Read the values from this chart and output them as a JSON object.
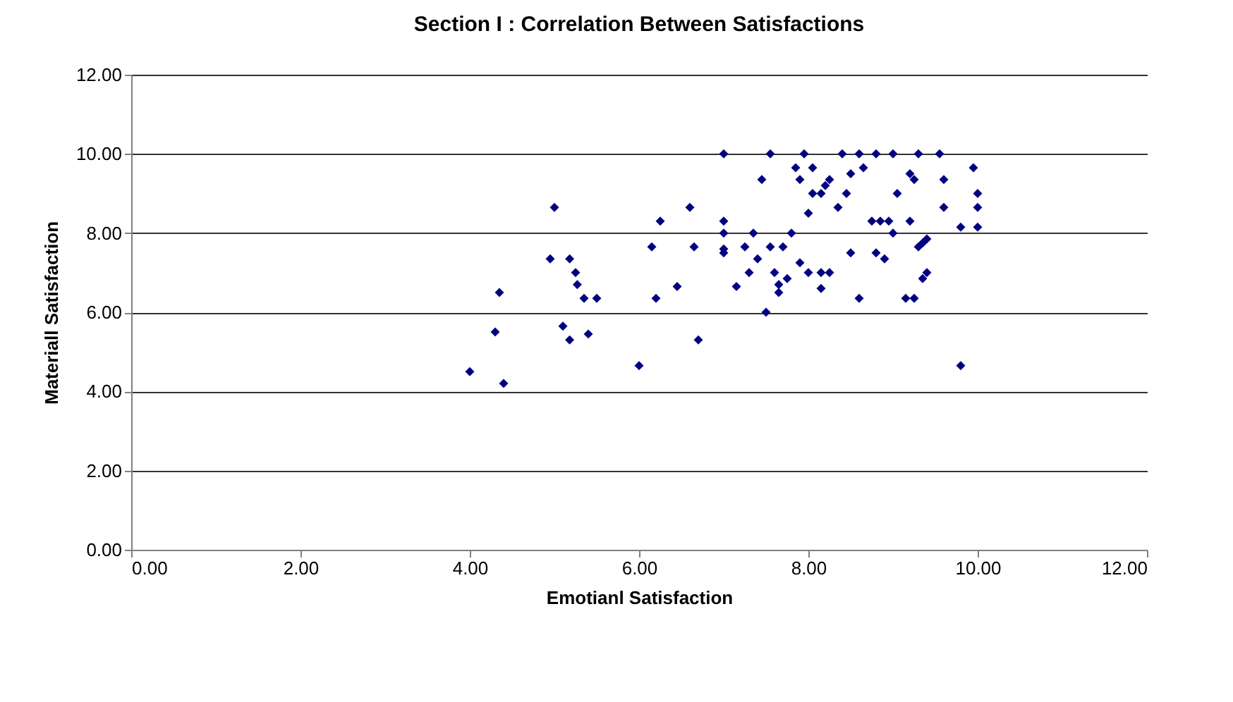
{
  "chart_data": {
    "type": "scatter",
    "title": "Section I : Correlation Between Satisfactions",
    "xlabel": "Emotianl Satisfaction",
    "ylabel": "Materiall Satisfaction",
    "x": [
      4.0,
      4.3,
      4.35,
      4.4,
      4.95,
      5.0,
      5.1,
      5.18,
      5.18,
      5.25,
      5.27,
      5.35,
      5.4,
      5.5,
      6.0,
      6.15,
      6.2,
      6.25,
      6.45,
      6.6,
      6.65,
      6.7,
      7.0,
      7.0,
      7.0,
      7.0,
      7.0,
      7.15,
      7.25,
      7.3,
      7.35,
      7.4,
      7.45,
      7.5,
      7.55,
      7.55,
      7.6,
      7.65,
      7.65,
      7.7,
      7.75,
      7.8,
      7.85,
      7.9,
      7.9,
      7.95,
      8.0,
      8.0,
      8.05,
      8.05,
      8.15,
      8.15,
      8.15,
      8.2,
      8.25,
      8.25,
      8.35,
      8.4,
      8.45,
      8.5,
      8.5,
      8.6,
      8.6,
      8.65,
      8.75,
      8.8,
      8.8,
      8.85,
      8.9,
      8.95,
      9.0,
      9.0,
      9.05,
      9.15,
      9.2,
      9.2,
      9.25,
      9.25,
      9.3,
      9.3,
      9.35,
      9.35,
      9.4,
      9.4,
      9.55,
      9.6,
      9.6,
      9.8,
      9.8,
      9.95,
      10.0,
      10.0,
      10.0
    ],
    "series": [
      {
        "color": "#000080",
        "values": [
          4.5,
          5.5,
          6.5,
          4.2,
          7.35,
          8.65,
          5.65,
          7.35,
          5.3,
          7.0,
          6.7,
          6.35,
          5.45,
          6.35,
          4.65,
          7.65,
          6.35,
          8.3,
          6.65,
          8.65,
          7.65,
          5.3,
          10.0,
          8.3,
          8.0,
          7.6,
          7.5,
          6.65,
          7.65,
          7.0,
          8.0,
          7.35,
          9.35,
          6.0,
          10.0,
          7.65,
          7.0,
          6.5,
          6.7,
          7.65,
          6.85,
          8.0,
          9.65,
          9.35,
          7.25,
          10.0,
          7.0,
          8.5,
          9.65,
          9.0,
          7.0,
          6.6,
          9.0,
          9.2,
          9.35,
          7.0,
          8.65,
          10.0,
          9.0,
          9.5,
          7.5,
          10.0,
          6.35,
          9.65,
          8.3,
          10.0,
          7.5,
          8.3,
          7.35,
          8.3,
          10.0,
          8.0,
          9.0,
          6.35,
          9.5,
          8.3,
          6.35,
          9.35,
          7.65,
          10.0,
          7.75,
          6.85,
          7.0,
          7.85,
          10.0,
          9.35,
          8.65,
          8.15,
          4.65,
          9.65,
          9.0,
          8.65,
          8.15
        ]
      }
    ],
    "xlim": [
      0,
      12
    ],
    "xticks": [
      {
        "value": 0,
        "label": "0.00"
      },
      {
        "value": 2,
        "label": "2.00"
      },
      {
        "value": 4,
        "label": "4.00"
      },
      {
        "value": 6,
        "label": "6.00"
      },
      {
        "value": 8,
        "label": "8.00"
      },
      {
        "value": 10,
        "label": "10.00"
      },
      {
        "value": 12,
        "label": "12.00"
      }
    ],
    "ylim": [
      0,
      12
    ],
    "yticks": [
      {
        "value": 0,
        "label": "0.00"
      },
      {
        "value": 2,
        "label": "2.00"
      },
      {
        "value": 4,
        "label": "4.00"
      },
      {
        "value": 6,
        "label": "6.00"
      },
      {
        "value": 8,
        "label": "8.00"
      },
      {
        "value": 10,
        "label": "10.00"
      },
      {
        "value": 12,
        "label": "12.00"
      }
    ],
    "grid": "y",
    "marker": "diamond"
  }
}
